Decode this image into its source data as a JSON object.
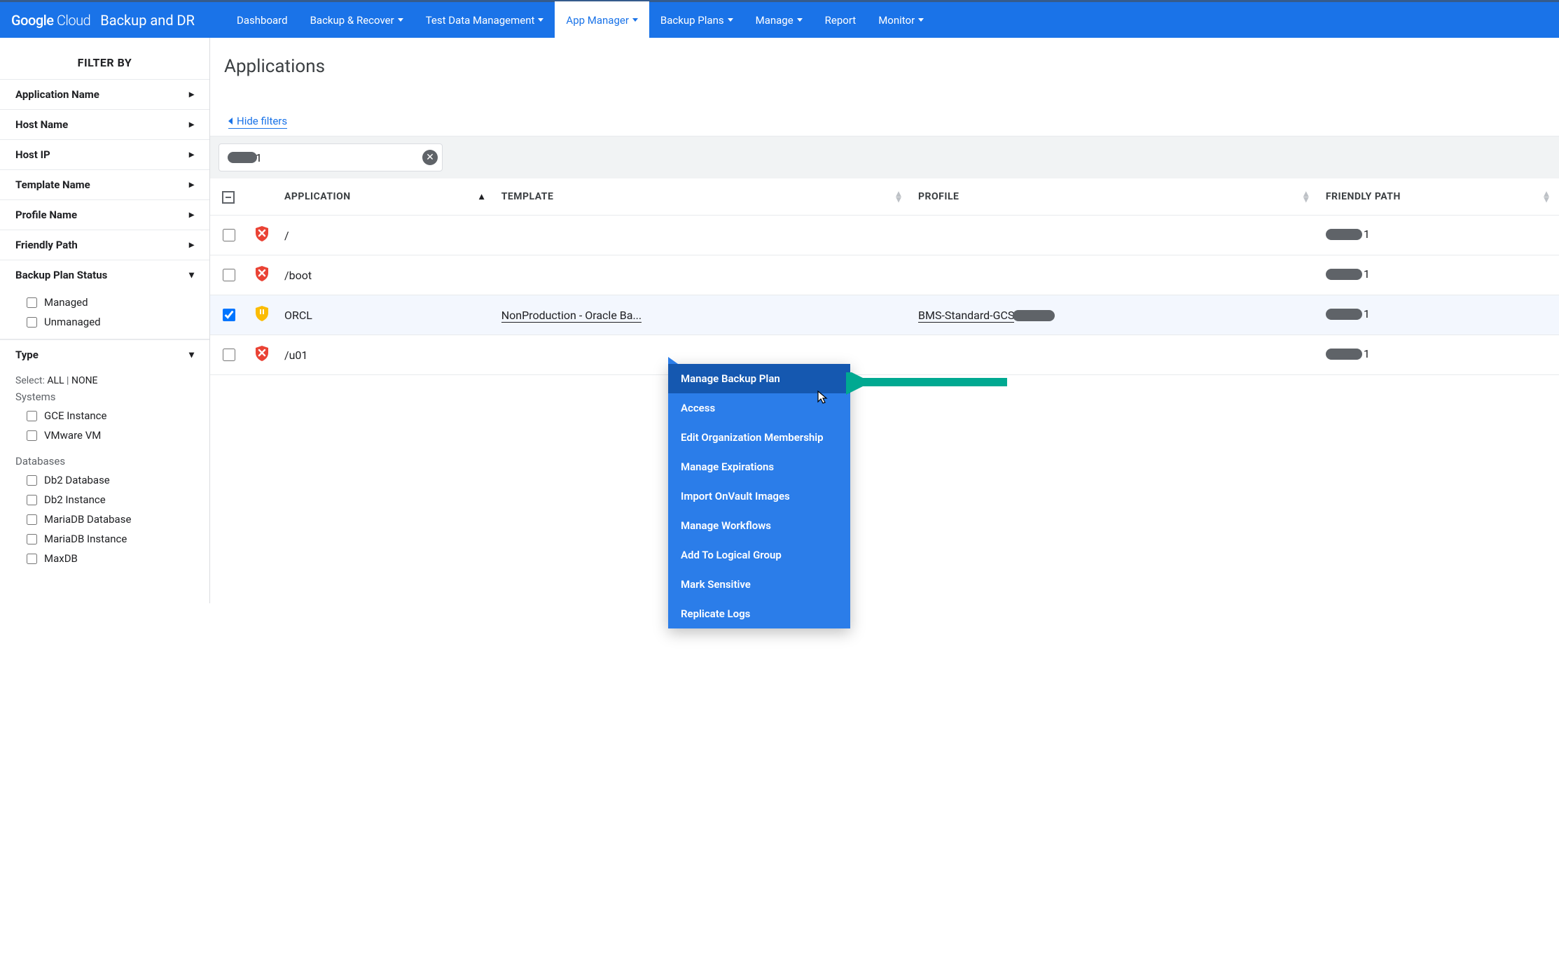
{
  "brand": {
    "logo1": "Google",
    "logo2": "Cloud",
    "product": "Backup and DR"
  },
  "nav": [
    {
      "label": "Dashboard",
      "dd": false,
      "active": false
    },
    {
      "label": "Backup & Recover",
      "dd": true,
      "active": false
    },
    {
      "label": "Test Data Management",
      "dd": true,
      "active": false
    },
    {
      "label": "App Manager",
      "dd": true,
      "active": true
    },
    {
      "label": "Backup Plans",
      "dd": true,
      "active": false
    },
    {
      "label": "Manage",
      "dd": true,
      "active": false
    },
    {
      "label": "Report",
      "dd": false,
      "active": false
    },
    {
      "label": "Monitor",
      "dd": true,
      "active": false
    }
  ],
  "sidebar": {
    "title": "FILTER BY",
    "filters": [
      "Application Name",
      "Host Name",
      "Host IP",
      "Template Name",
      "Profile Name",
      "Friendly Path"
    ],
    "status": {
      "label": "Backup Plan Status",
      "opts": [
        "Managed",
        "Unmanaged"
      ]
    },
    "type": {
      "label": "Type",
      "select_prefix": "Select:",
      "all": "ALL",
      "sep": " | ",
      "none": "NONE",
      "grp1": "Systems",
      "g1": [
        "GCE Instance",
        "VMware VM"
      ],
      "grp2": "Databases",
      "g2": [
        "Db2 Database",
        "Db2 Instance",
        "MariaDB Database",
        "MariaDB Instance",
        "MaxDB"
      ]
    }
  },
  "page": {
    "title": "Applications",
    "hide_filters": "Hide filters",
    "search_tail": "1"
  },
  "table": {
    "cols": [
      "APPLICATION",
      "TEMPLATE",
      "PROFILE",
      "FRIENDLY PATH"
    ],
    "rows": [
      {
        "icon": "red",
        "app": "/",
        "tpl": "",
        "prof": "",
        "fp": "1",
        "sel": false
      },
      {
        "icon": "red",
        "app": "/boot",
        "tpl": "",
        "prof": "",
        "fp": "1",
        "sel": false
      },
      {
        "icon": "yellow",
        "app": "ORCL",
        "tpl": "NonProduction - Oracle Ba...",
        "prof": "BMS-Standard-GCS",
        "fp": "1",
        "sel": true
      },
      {
        "icon": "red",
        "app": "/u01",
        "tpl": "",
        "prof": "",
        "fp": "1",
        "sel": false
      }
    ]
  },
  "ctx": [
    "Manage Backup Plan",
    "Access",
    "Edit Organization Membership",
    "Manage Expirations",
    "Import OnVault Images",
    "Manage Workflows",
    "Add To Logical Group",
    "Mark Sensitive",
    "Replicate Logs"
  ]
}
